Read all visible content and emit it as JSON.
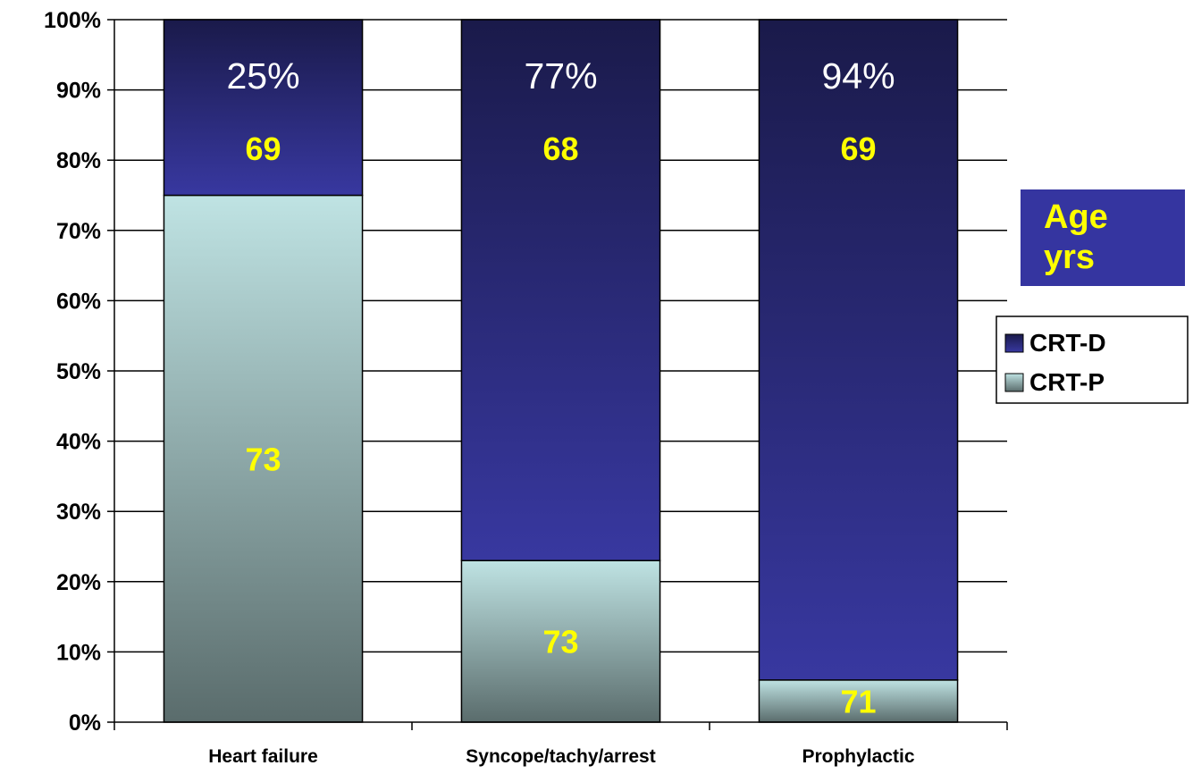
{
  "chart_data": {
    "type": "bar",
    "stacked": true,
    "categories": [
      "Heart failure",
      "Syncope/tachy/arrest",
      "Prophylactic"
    ],
    "series": [
      {
        "name": "CRT-P",
        "values": [
          75,
          23,
          6
        ],
        "color": "#b8e0e0",
        "ages": [
          "73",
          "73",
          "71"
        ]
      },
      {
        "name": "CRT-D",
        "values": [
          25,
          77,
          94
        ],
        "color": "#2a2a8a",
        "ages": [
          "69",
          "68",
          "69"
        ]
      }
    ],
    "crt_d_percent_labels": [
      "25%",
      "77%",
      "94%"
    ],
    "ylim": [
      0,
      100
    ],
    "y_ticks": [
      "0%",
      "10%",
      "20%",
      "30%",
      "40%",
      "50%",
      "60%",
      "70%",
      "80%",
      "90%",
      "100%"
    ],
    "grid": true,
    "legend_position": "right",
    "legend": [
      "CRT-D",
      "CRT-P"
    ],
    "annotation_box": {
      "line1": "Age",
      "line2": "yrs"
    },
    "colors": {
      "age_label": "#ffff00",
      "annotation_bg": "#3535a0"
    }
  }
}
